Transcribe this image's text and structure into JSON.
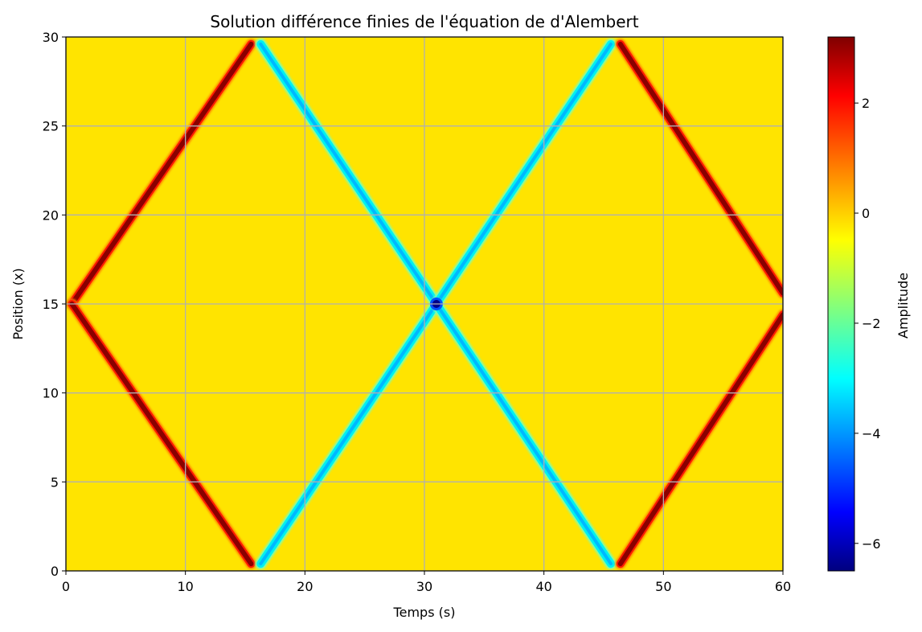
{
  "chart_data": {
    "type": "heatmap",
    "title": "Solution différence finies de l'équation de d'Alembert",
    "xlabel": "Temps (s)",
    "ylabel": "Position (x)",
    "xlim": [
      0,
      60
    ],
    "ylim": [
      0,
      30
    ],
    "x_ticks": [
      "0",
      "10",
      "20",
      "30",
      "40",
      "50",
      "60"
    ],
    "x_tick_values": [
      0,
      10,
      20,
      30,
      40,
      50,
      60
    ],
    "y_ticks": [
      "0",
      "5",
      "10",
      "15",
      "20",
      "25",
      "30"
    ],
    "y_tick_values": [
      0,
      5,
      10,
      15,
      20,
      25,
      30
    ],
    "grid": true,
    "colormap": "jet",
    "colorbar": {
      "label": "Amplitude",
      "min": -6.5,
      "max": 3.2,
      "ticks": [
        "2",
        "0",
        "−2",
        "−4",
        "−6"
      ],
      "tick_values": [
        2,
        0,
        -2,
        -4,
        -6
      ]
    },
    "background_value": 0,
    "wave_speed": 1.0,
    "pulses": [
      {
        "name": "positive-up-1",
        "amplitude": 3.2,
        "points": [
          [
            0.5,
            15
          ],
          [
            15.5,
            29.6
          ]
        ]
      },
      {
        "name": "positive-down-1",
        "amplitude": 3.2,
        "points": [
          [
            0.5,
            15
          ],
          [
            15.5,
            0.4
          ]
        ]
      },
      {
        "name": "negative-down-1",
        "amplitude": -3.2,
        "points": [
          [
            16.3,
            29.6
          ],
          [
            31,
            15
          ]
        ]
      },
      {
        "name": "negative-up-1",
        "amplitude": -3.2,
        "points": [
          [
            16.3,
            0.4
          ],
          [
            31,
            15
          ]
        ]
      },
      {
        "name": "negative-up-2",
        "amplitude": -3.2,
        "points": [
          [
            31,
            15
          ],
          [
            45.6,
            29.6
          ]
        ]
      },
      {
        "name": "negative-down-2",
        "amplitude": -3.2,
        "points": [
          [
            31,
            15
          ],
          [
            45.6,
            0.4
          ]
        ]
      },
      {
        "name": "positive-down-2",
        "amplitude": 3.2,
        "points": [
          [
            46.4,
            29.6
          ],
          [
            60,
            15.6
          ]
        ]
      },
      {
        "name": "positive-up-2",
        "amplitude": 3.2,
        "points": [
          [
            46.4,
            0.4
          ],
          [
            60,
            14.4
          ]
        ]
      }
    ],
    "crossing_peak": {
      "x": 31,
      "y": 15,
      "amplitude": -6.4
    }
  }
}
